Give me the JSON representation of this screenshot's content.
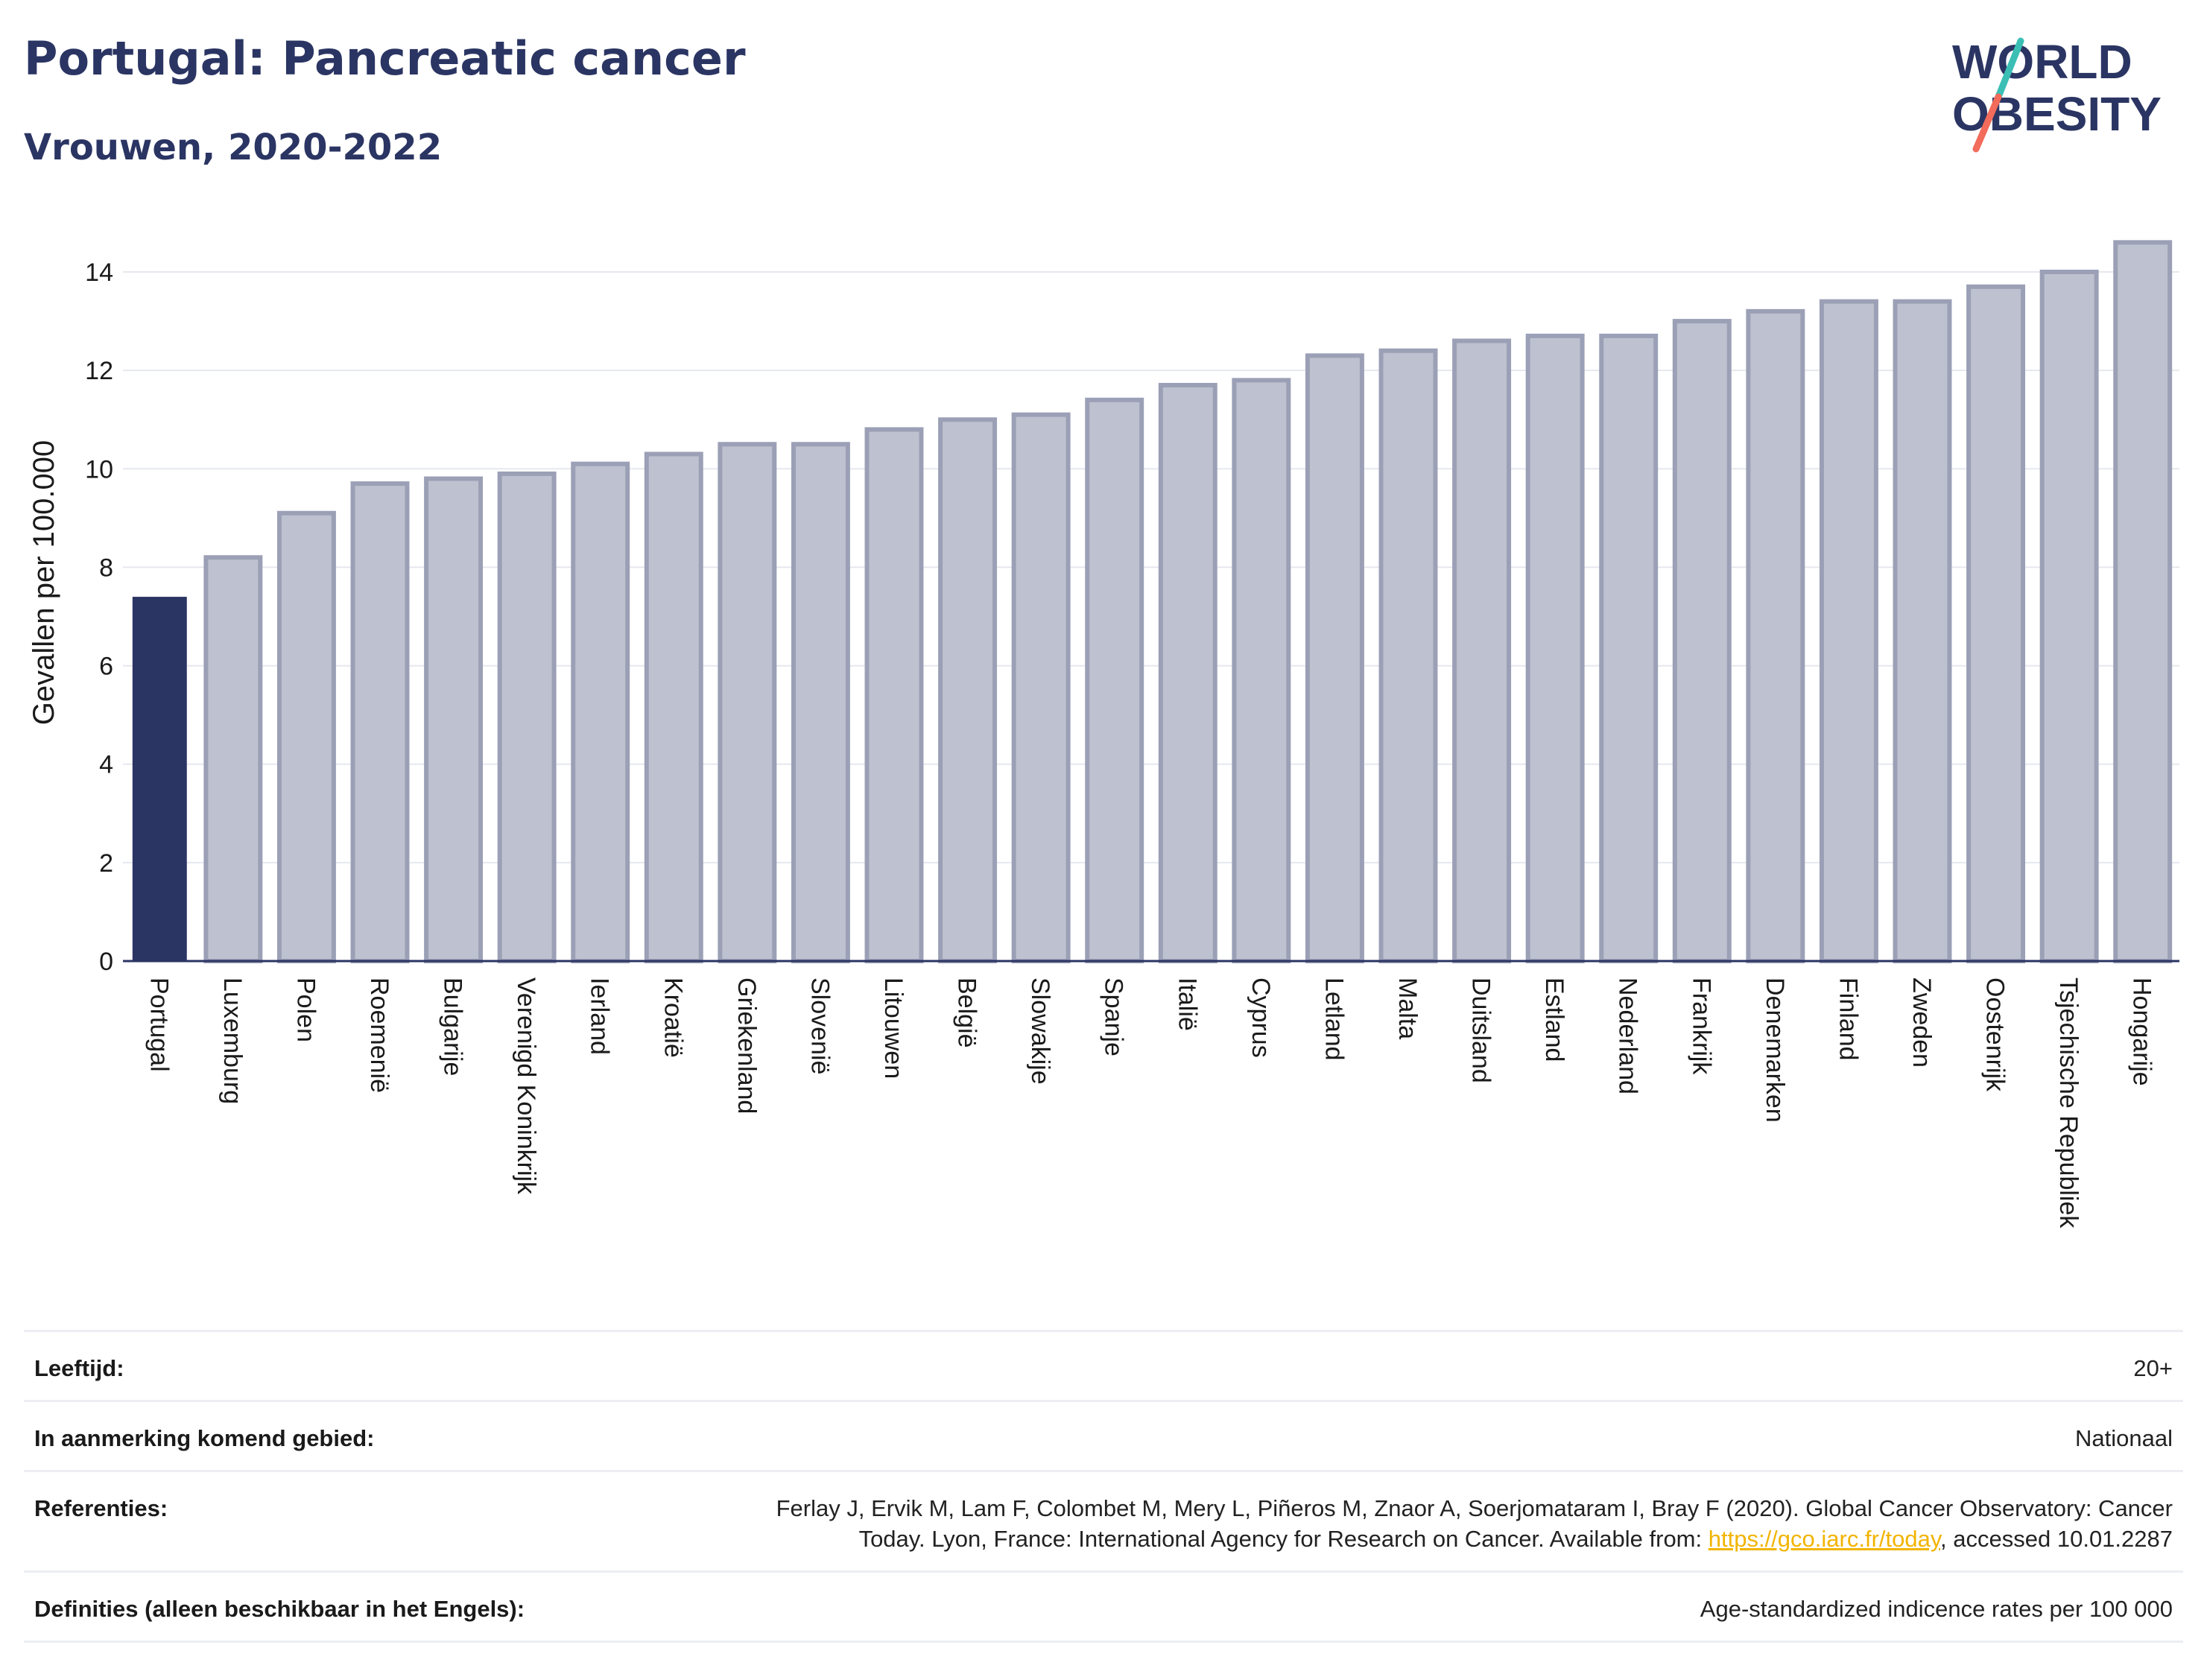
{
  "header": {
    "title": "Portugal: Pancreatic cancer",
    "subtitle": "Vrouwen, 2020-2022"
  },
  "logo": {
    "line1": "WORLD",
    "line2": "OBESITY",
    "colors": {
      "text": "#2b3563",
      "slash_teal": "#3bbfb4",
      "slash_coral": "#f26b5b"
    }
  },
  "colors": {
    "highlight_bar": "#2b3563",
    "bar_fill": "#bec1cf",
    "bar_stroke": "#9ba0b6",
    "grid": "#e6e8ef",
    "axis": "#2b3563"
  },
  "chart_data": {
    "type": "bar",
    "title": "",
    "xlabel": "",
    "ylabel": "Gevallen per 100.000",
    "ylim": [
      0,
      15
    ],
    "yticks": [
      0,
      2,
      4,
      6,
      8,
      10,
      12,
      14
    ],
    "grid": true,
    "highlight": "Portugal",
    "categories": [
      "Portugal",
      "Luxemburg",
      "Polen",
      "Roemenië",
      "Bulgarije",
      "Verenigd Koninkrijk",
      "Ierland",
      "Kroatië",
      "Griekenland",
      "Slovenië",
      "Litouwen",
      "België",
      "Slowakije",
      "Spanje",
      "Italië",
      "Cyprus",
      "Letland",
      "Malta",
      "Duitsland",
      "Estland",
      "Nederland",
      "Frankrijk",
      "Denemarken",
      "Finland",
      "Zweden",
      "Oostenrijk",
      "Tsjechische Republiek",
      "Hongarije"
    ],
    "values": [
      7.4,
      8.2,
      9.1,
      9.7,
      9.8,
      9.9,
      10.1,
      10.3,
      10.5,
      10.5,
      10.8,
      11.0,
      11.1,
      11.4,
      11.7,
      11.8,
      12.3,
      12.4,
      12.6,
      12.7,
      12.7,
      13.0,
      13.2,
      13.4,
      13.4,
      13.7,
      14.0,
      14.6
    ]
  },
  "meta": {
    "rows": [
      {
        "label": "Leeftijd:",
        "value": "20+"
      },
      {
        "label": "In aanmerking komend gebied:",
        "value": "Nationaal"
      },
      {
        "label": "Referenties:",
        "value_line1": "Ferlay J, Ervik M, Lam F, Colombet M, Mery L, Piñeros M, Znaor A, Soerjomataram I, Bray F (2020). Global Cancer Observatory: Cancer",
        "value_line2_pre": "Today. Lyon, France: International Agency for Research on Cancer. Available from: ",
        "link": "https://gco.iarc.fr/today",
        "value_line2_post": ", accessed 10.01.2287"
      },
      {
        "label": "Definities (alleen beschikbaar in het Engels):",
        "value": "Age-standardized indicence rates per 100 000"
      }
    ]
  }
}
